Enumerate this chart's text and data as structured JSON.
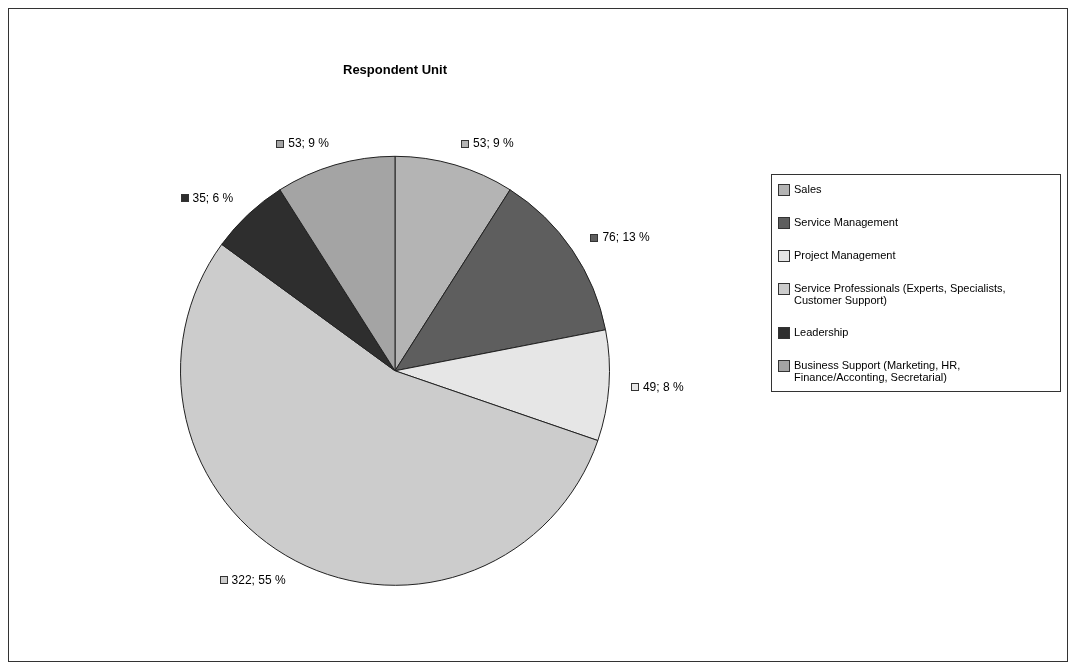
{
  "chart_data": {
    "type": "pie",
    "title": "Respondent Unit",
    "categories": [
      "Sales",
      "Service Management",
      "Project Management",
      "Service Professionals (Experts, Specialists, Customer Support)",
      "Leadership",
      "Business Support (Marketing, HR, Finance/Acconting, Secretarial)"
    ],
    "values": [
      53,
      76,
      49,
      322,
      35,
      53
    ],
    "value_labels": [
      "53; 9 %",
      "76; 13 %",
      "49; 8 %",
      "322; 55 %",
      "35; 6 %",
      "53; 9 %"
    ],
    "colors": [
      "#b4b4b4",
      "#5e5e5e",
      "#e6e6e6",
      "#cccccc",
      "#2e2e2e",
      "#a4a4a4"
    ],
    "legend": "right"
  }
}
